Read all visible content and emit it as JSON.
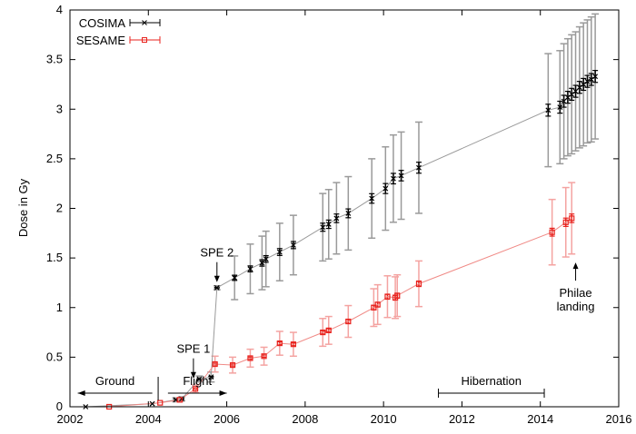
{
  "chart_data": {
    "type": "scatter",
    "xlabel": "",
    "ylabel": "Dose in Gy",
    "xlim": [
      2002,
      2016
    ],
    "ylim": [
      0,
      4
    ],
    "x_ticks": [
      "2002",
      "2004",
      "2006",
      "2008",
      "2010",
      "2012",
      "2014",
      "2016"
    ],
    "y_ticks": [
      "0",
      "0.5",
      "1",
      "1.5",
      "2",
      "2.5",
      "3",
      "3.5",
      "4"
    ],
    "grid": false,
    "legend_position": "top-left",
    "colors": {
      "cosima": "#000000",
      "cosima_err": "#9a9a9a",
      "sesame": "#e8231e",
      "sesame_err": "#f4a3a1",
      "zero_line": "#b0b0b0"
    },
    "series": [
      {
        "name": "COSIMA",
        "marker": "x",
        "points": [
          {
            "x": 2002.4,
            "y": 0.0,
            "err": 0.01
          },
          {
            "x": 2004.1,
            "y": 0.03,
            "err": 0.01
          },
          {
            "x": 2004.7,
            "y": 0.07,
            "err": 0.02
          },
          {
            "x": 2004.85,
            "y": 0.08,
            "err": 0.02
          },
          {
            "x": 2005.3,
            "y": 0.28,
            "err": 0.03
          },
          {
            "x": 2005.6,
            "y": 0.3,
            "err": 0.05
          },
          {
            "x": 2005.75,
            "y": 1.2,
            "err": 0.02
          },
          {
            "x": 2006.2,
            "y": 1.3,
            "err": 0.22
          },
          {
            "x": 2006.6,
            "y": 1.39,
            "err": 0.25
          },
          {
            "x": 2006.9,
            "y": 1.45,
            "err": 0.27
          },
          {
            "x": 2007.0,
            "y": 1.49,
            "err": 0.28
          },
          {
            "x": 2007.35,
            "y": 1.56,
            "err": 0.29
          },
          {
            "x": 2007.7,
            "y": 1.63,
            "err": 0.3
          },
          {
            "x": 2008.45,
            "y": 1.81,
            "err": 0.34
          },
          {
            "x": 2008.6,
            "y": 1.84,
            "err": 0.35
          },
          {
            "x": 2008.8,
            "y": 1.9,
            "err": 0.36
          },
          {
            "x": 2009.1,
            "y": 1.95,
            "err": 0.37
          },
          {
            "x": 2009.7,
            "y": 2.1,
            "err": 0.4
          },
          {
            "x": 2010.05,
            "y": 2.2,
            "err": 0.42
          },
          {
            "x": 2010.25,
            "y": 2.3,
            "err": 0.44
          },
          {
            "x": 2010.45,
            "y": 2.33,
            "err": 0.44
          },
          {
            "x": 2010.9,
            "y": 2.41,
            "err": 0.46
          },
          {
            "x": 2014.2,
            "y": 2.99,
            "err": 0.57
          },
          {
            "x": 2014.5,
            "y": 3.02,
            "err": 0.57
          },
          {
            "x": 2014.6,
            "y": 3.08,
            "err": 0.58
          },
          {
            "x": 2014.7,
            "y": 3.12,
            "err": 0.59
          },
          {
            "x": 2014.8,
            "y": 3.15,
            "err": 0.6
          },
          {
            "x": 2014.9,
            "y": 3.18,
            "err": 0.6
          },
          {
            "x": 2015.0,
            "y": 3.22,
            "err": 0.61
          },
          {
            "x": 2015.1,
            "y": 3.25,
            "err": 0.62
          },
          {
            "x": 2015.2,
            "y": 3.28,
            "err": 0.62
          },
          {
            "x": 2015.3,
            "y": 3.3,
            "err": 0.63
          },
          {
            "x": 2015.4,
            "y": 3.33,
            "err": 0.63
          }
        ]
      },
      {
        "name": "SESAME",
        "marker": "square",
        "points": [
          {
            "x": 2003.0,
            "y": 0.0,
            "err": 0.01
          },
          {
            "x": 2004.3,
            "y": 0.04,
            "err": 0.01
          },
          {
            "x": 2004.8,
            "y": 0.07,
            "err": 0.02
          },
          {
            "x": 2005.2,
            "y": 0.18,
            "err": 0.04
          },
          {
            "x": 2005.7,
            "y": 0.43,
            "err": 0.08
          },
          {
            "x": 2006.15,
            "y": 0.42,
            "err": 0.08
          },
          {
            "x": 2006.6,
            "y": 0.49,
            "err": 0.09
          },
          {
            "x": 2006.95,
            "y": 0.51,
            "err": 0.09
          },
          {
            "x": 2007.35,
            "y": 0.64,
            "err": 0.12
          },
          {
            "x": 2007.7,
            "y": 0.63,
            "err": 0.12
          },
          {
            "x": 2008.45,
            "y": 0.75,
            "err": 0.14
          },
          {
            "x": 2008.6,
            "y": 0.77,
            "err": 0.14
          },
          {
            "x": 2009.1,
            "y": 0.86,
            "err": 0.16
          },
          {
            "x": 2009.75,
            "y": 1.0,
            "err": 0.19
          },
          {
            "x": 2009.85,
            "y": 1.03,
            "err": 0.2
          },
          {
            "x": 2010.1,
            "y": 1.11,
            "err": 0.21
          },
          {
            "x": 2010.3,
            "y": 1.1,
            "err": 0.21
          },
          {
            "x": 2010.35,
            "y": 1.12,
            "err": 0.21
          },
          {
            "x": 2010.9,
            "y": 1.24,
            "err": 0.23
          },
          {
            "x": 2014.3,
            "y": 1.76,
            "err": 0.33
          },
          {
            "x": 2014.65,
            "y": 1.86,
            "err": 0.35
          },
          {
            "x": 2014.8,
            "y": 1.9,
            "err": 0.36
          }
        ]
      }
    ],
    "annotations": [
      {
        "id": "spe1",
        "text": "SPE 1",
        "x": 2005.15,
        "y": 0.25
      },
      {
        "id": "spe2",
        "text": "SPE 2",
        "x": 2005.75,
        "y": 1.22
      },
      {
        "id": "philae",
        "lines": [
          "Philae",
          "landing"
        ],
        "x": 2014.9,
        "y": 1.5
      },
      {
        "id": "ground",
        "text": "Ground",
        "span": [
          2002.2,
          2004.1
        ]
      },
      {
        "id": "flight",
        "text": "Flight",
        "span": [
          2004.5,
          2006.0
        ]
      },
      {
        "id": "hibernation",
        "text": "Hibernation",
        "span": [
          2011.4,
          2014.1
        ]
      }
    ]
  }
}
